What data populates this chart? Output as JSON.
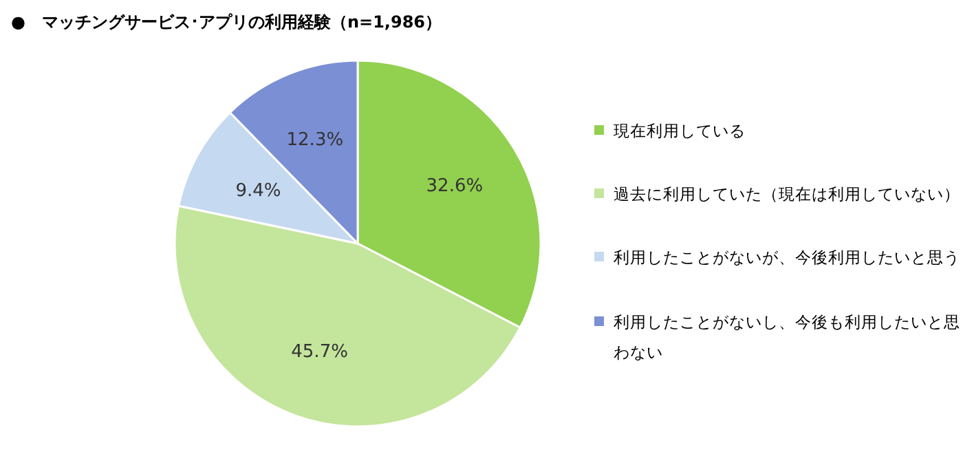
{
  "chart_data": {
    "type": "pie",
    "title": "●　マッチングサービス･アプリの利用経験（n=1,986）",
    "categories": [
      "現在利用している",
      "過去に利用していた（現在は利用していない）",
      "利用したことがないが、今後利用したいと思う",
      "利用したことがないし、今後も利用したいと思わない"
    ],
    "values": [
      32.6,
      45.7,
      9.4,
      12.3
    ],
    "colors": [
      "#92d050",
      "#c4e59c",
      "#c5d9f1",
      "#7b8fd4"
    ],
    "value_labels": [
      "32.6%",
      "45.7%",
      "9.4%",
      "12.3%"
    ],
    "legend": "right"
  }
}
